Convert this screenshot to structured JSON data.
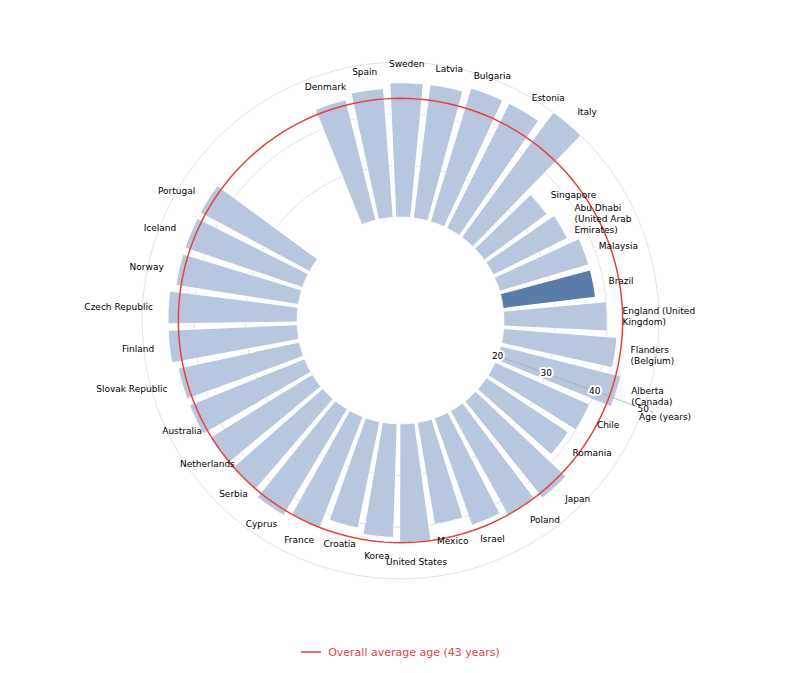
{
  "chart_data": {
    "type": "radial_bar",
    "categories": [
      "Denmark",
      "Spain",
      "Sweden",
      "Latvia",
      "Bulgaria",
      "Estonia",
      "Italy",
      "Singapore",
      "Abu Dhabi\n(United Arab\nEmirates)",
      "Malaysia",
      "Brazil",
      "England (United\nKingdom)",
      "Flanders\n(Belgium)",
      "Alberta\n(Canada)",
      "Chile",
      "Romania",
      "Japan",
      "Poland",
      "Israel",
      "Mexico",
      "United States",
      "Korea",
      "Croatia",
      "France",
      "Cyprus",
      "Serbia",
      "Netherlands",
      "Australia",
      "Slovak Republic",
      "Finland",
      "Czech Republic",
      "Norway",
      "Iceland",
      "Portugal"
    ],
    "values": [
      44,
      45,
      46,
      46,
      47,
      47,
      50,
      35,
      36,
      38,
      38,
      40,
      42,
      44,
      40,
      39,
      44,
      43,
      42,
      40,
      43,
      42,
      41,
      43,
      44,
      43,
      43,
      44,
      44,
      45,
      45,
      44,
      44,
      44
    ],
    "colors": [
      "#b8c7de",
      "#b8c7de",
      "#b8c7de",
      "#b8c7de",
      "#b8c7de",
      "#b8c7de",
      "#b8c7de",
      "#b8c7de",
      "#b8c7de",
      "#b8c7de",
      "#5a7ca8",
      "#b8c7de",
      "#b8c7de",
      "#b8c7de",
      "#b8c7de",
      "#b8c7de",
      "#b8c7de",
      "#b8c7de",
      "#b8c7de",
      "#b8c7de",
      "#b8c7de",
      "#b8c7de",
      "#b8c7de",
      "#b8c7de",
      "#b8c7de",
      "#b8c7de",
      "#b8c7de",
      "#b8c7de",
      "#b8c7de",
      "#b8c7de",
      "#b8c7de",
      "#b8c7de",
      "#b8c7de",
      "#b8c7de"
    ],
    "bar_base": 20,
    "ylim": [
      0,
      60
    ],
    "yticks": [
      20,
      30,
      40,
      50
    ],
    "ylabel": "Age (years)",
    "grid": true,
    "reference_line": {
      "value": 43,
      "color": "#e8433a",
      "label": "Overall average age (43 years)"
    }
  }
}
